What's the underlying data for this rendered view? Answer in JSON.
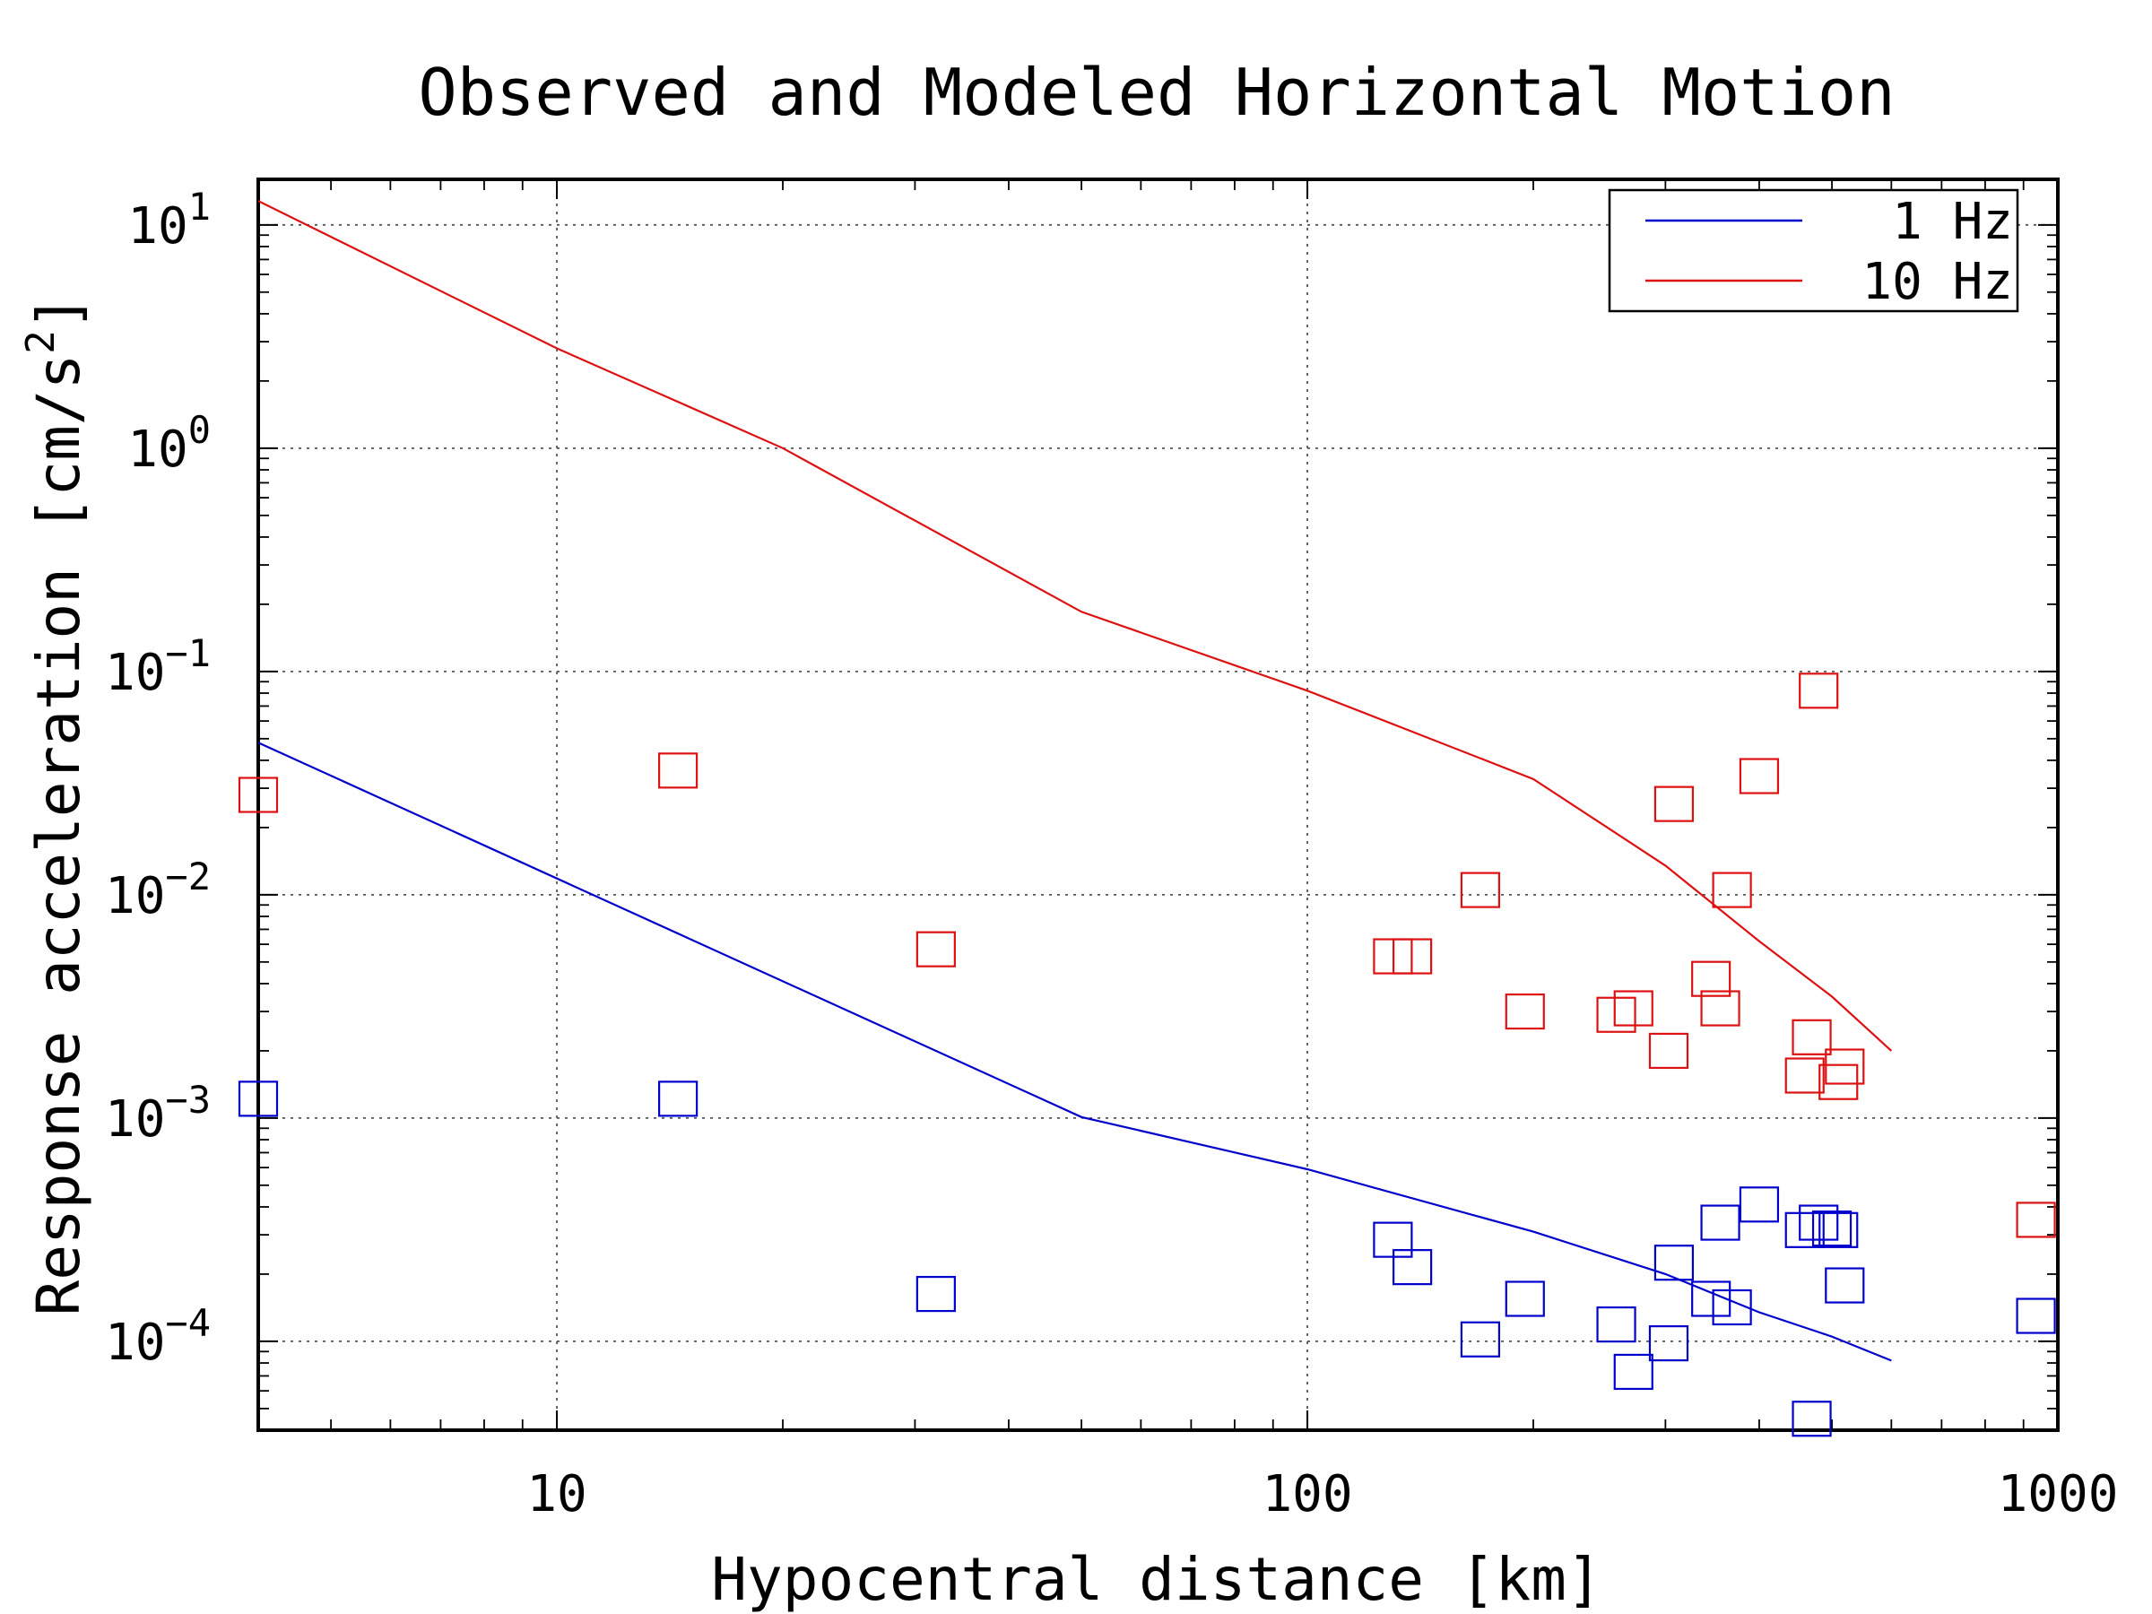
{
  "chart_data": {
    "type": "scatter",
    "title": "Observed and Modeled Horizontal Motion",
    "xlabel": "Hypocentral distance [km]",
    "ylabel": "Response acceleration [cm/s²]",
    "ylabel_parts": {
      "main": "Response acceleration [cm/s",
      "sup": "2",
      "end": "]"
    },
    "x_scale": "log",
    "y_scale": "log",
    "xlim": [
      4,
      1000
    ],
    "ylim": [
      4e-05,
      16
    ],
    "grid": true,
    "legend_position": "top-right",
    "x_ticks": [
      {
        "value": 10,
        "label": "10"
      },
      {
        "value": 100,
        "label": "100"
      },
      {
        "value": 1000,
        "label": "1000"
      }
    ],
    "y_ticks": [
      {
        "value": 10,
        "base": "10",
        "exp": "1"
      },
      {
        "value": 1,
        "base": "10",
        "exp": "0"
      },
      {
        "value": 0.1,
        "base": "10",
        "exp": "−1"
      },
      {
        "value": 0.01,
        "base": "10",
        "exp": "−2"
      },
      {
        "value": 0.001,
        "base": "10",
        "exp": "−3"
      },
      {
        "value": 0.0001,
        "base": "10",
        "exp": "−4"
      }
    ],
    "series": [
      {
        "name": "1 Hz",
        "color": "#0000cc",
        "model": [
          [
            4,
            0.048
          ],
          [
            50,
            0.00101
          ],
          [
            100,
            0.00059
          ],
          [
            200,
            0.00031
          ],
          [
            300,
            0.0002
          ],
          [
            400,
            0.000135
          ],
          [
            500,
            0.000105
          ],
          [
            600,
            8.2e-05
          ]
        ],
        "observed": [
          [
            4,
            0.00122
          ],
          [
            14.5,
            0.00122
          ],
          [
            32,
            0.000163
          ],
          [
            130,
            0.000285
          ],
          [
            138,
            0.000215
          ],
          [
            170,
            0.000102
          ],
          [
            195,
            0.000155
          ],
          [
            258,
            0.000119
          ],
          [
            272,
            7.3e-05
          ],
          [
            303,
            9.8e-05
          ],
          [
            308,
            0.000225
          ],
          [
            345,
            0.000155
          ],
          [
            355,
            0.00034
          ],
          [
            368,
            0.000142
          ],
          [
            400,
            0.00041
          ],
          [
            460,
            0.000315
          ],
          [
            470,
            4.5e-05
          ],
          [
            480,
            0.00034
          ],
          [
            500,
            0.00032
          ],
          [
            510,
            0.000315
          ],
          [
            520,
            0.000178
          ],
          [
            935,
            0.00013
          ]
        ]
      },
      {
        "name": "10 Hz",
        "color": "#dd1111",
        "model": [
          [
            4,
            12.8
          ],
          [
            10,
            2.8
          ],
          [
            20,
            1.0
          ],
          [
            50,
            0.185
          ],
          [
            100,
            0.082
          ],
          [
            200,
            0.033
          ],
          [
            300,
            0.0135
          ],
          [
            400,
            0.0062
          ],
          [
            500,
            0.0035
          ],
          [
            600,
            0.002
          ]
        ],
        "observed": [
          [
            4,
            0.028
          ],
          [
            14.5,
            0.036
          ],
          [
            32,
            0.0057
          ],
          [
            130,
            0.0053
          ],
          [
            138,
            0.0053
          ],
          [
            170,
            0.0105
          ],
          [
            195,
            0.003
          ],
          [
            258,
            0.0029
          ],
          [
            272,
            0.0031
          ],
          [
            303,
            0.002
          ],
          [
            308,
            0.0255
          ],
          [
            345,
            0.0042
          ],
          [
            355,
            0.0031
          ],
          [
            368,
            0.0105
          ],
          [
            400,
            0.034
          ],
          [
            460,
            0.00155
          ],
          [
            470,
            0.0023
          ],
          [
            480,
            0.082
          ],
          [
            510,
            0.00145
          ],
          [
            520,
            0.0017
          ],
          [
            935,
            0.00035
          ]
        ]
      }
    ]
  }
}
